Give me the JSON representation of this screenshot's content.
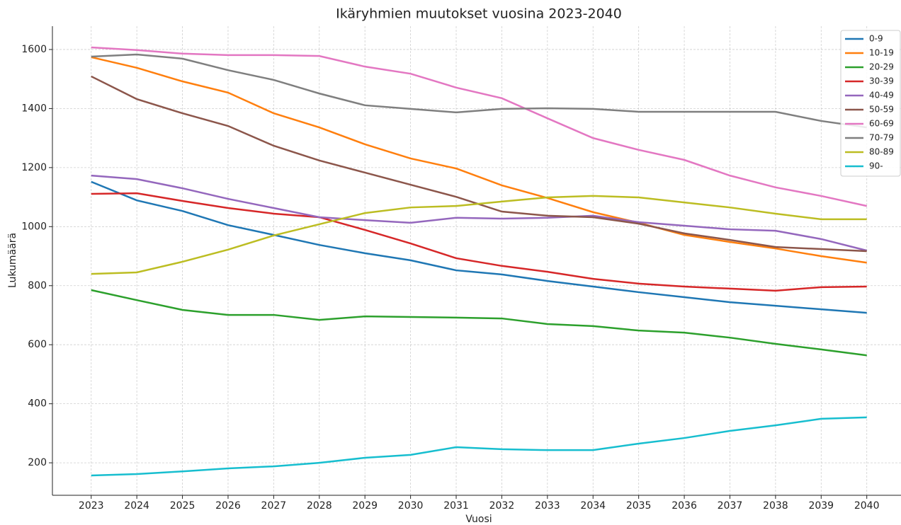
{
  "chart_data": {
    "type": "line",
    "title": "Ikäryhmien muutokset vuosina 2023-2040",
    "x_label": "Vuosi",
    "y_label": "Lukumäärä",
    "x": [
      2023,
      2024,
      2025,
      2026,
      2027,
      2028,
      2029,
      2030,
      2031,
      2032,
      2033,
      2034,
      2035,
      2036,
      2037,
      2038,
      2039,
      2040
    ],
    "xlim": [
      2022.15,
      2040.75
    ],
    "xticks": [
      2023,
      2024,
      2025,
      2026,
      2027,
      2028,
      2029,
      2030,
      2031,
      2032,
      2033,
      2034,
      2035,
      2036,
      2037,
      2038,
      2039,
      2040
    ],
    "ylim": [
      90,
      1679
    ],
    "yticks": [
      200,
      400,
      600,
      800,
      1000,
      1200,
      1400,
      1600
    ],
    "grid": true,
    "legend": "upper right",
    "series": [
      {
        "name": "0-9",
        "color": "#1f77b4",
        "values": [
          1152,
          1089,
          1053,
          1005,
          972,
          938,
          910,
          886,
          852,
          838,
          816,
          797,
          778,
          761,
          744,
          732,
          720,
          708
        ]
      },
      {
        "name": "10-19",
        "color": "#ff7f0e",
        "values": [
          1574,
          1538,
          1492,
          1454,
          1384,
          1336,
          1279,
          1231,
          1197,
          1140,
          1097,
          1049,
          1013,
          972,
          948,
          926,
          900,
          878
        ]
      },
      {
        "name": "20-29",
        "color": "#2ca02c",
        "values": [
          785,
          751,
          718,
          701,
          701,
          684,
          696,
          694,
          692,
          689,
          670,
          663,
          648,
          641,
          624,
          603,
          584,
          564
        ]
      },
      {
        "name": "30-39",
        "color": "#d62728",
        "values": [
          1111,
          1113,
          1087,
          1063,
          1044,
          1032,
          989,
          943,
          893,
          867,
          847,
          823,
          807,
          797,
          790,
          783,
          795,
          797
        ]
      },
      {
        "name": "40-49",
        "color": "#9467bd",
        "values": [
          1173,
          1161,
          1130,
          1094,
          1063,
          1032,
          1022,
          1013,
          1030,
          1027,
          1030,
          1037,
          1015,
          1003,
          991,
          986,
          958,
          919
        ]
      },
      {
        "name": "50-59",
        "color": "#8c564b",
        "values": [
          1509,
          1432,
          1384,
          1341,
          1274,
          1224,
          1183,
          1142,
          1101,
          1051,
          1037,
          1032,
          1010,
          977,
          955,
          931,
          924,
          917
        ]
      },
      {
        "name": "60-69",
        "color": "#e377c2",
        "values": [
          1607,
          1598,
          1586,
          1581,
          1581,
          1578,
          1542,
          1518,
          1471,
          1435,
          1367,
          1300,
          1260,
          1226,
          1173,
          1133,
          1104,
          1070
        ]
      },
      {
        "name": "70-79",
        "color": "#7f7f7f",
        "values": [
          1576,
          1583,
          1569,
          1530,
          1497,
          1451,
          1411,
          1399,
          1387,
          1399,
          1401,
          1399,
          1389,
          1389,
          1389,
          1389,
          1358,
          1336
        ]
      },
      {
        "name": "80-89",
        "color": "#bcbd22",
        "values": [
          840,
          845,
          881,
          922,
          970,
          1008,
          1046,
          1065,
          1070,
          1085,
          1099,
          1104,
          1099,
          1082,
          1065,
          1044,
          1025,
          1025
        ]
      },
      {
        "name": "90-",
        "color": "#17becf",
        "values": [
          157,
          162,
          171,
          181,
          188,
          200,
          217,
          227,
          253,
          246,
          243,
          243,
          265,
          284,
          308,
          327,
          349,
          354
        ]
      }
    ]
  }
}
